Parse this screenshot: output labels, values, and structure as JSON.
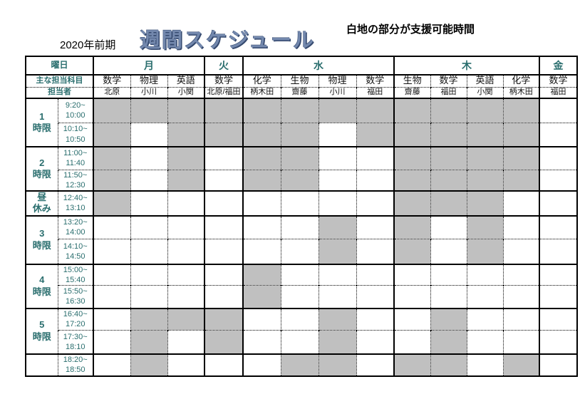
{
  "page": {
    "semester": "2020年前期",
    "title": "週間スケジュール",
    "note": "白地の部分が支援可能時間"
  },
  "table": {
    "corner_label": "曜日",
    "subject_row_label": "主な担当科目",
    "staff_row_label": "担当者",
    "day_groups": [
      {
        "day": "月",
        "subjects": [
          "数学",
          "物理",
          "英語"
        ],
        "staff": [
          "北原",
          "小川",
          "小関"
        ]
      },
      {
        "day": "火",
        "subjects": [
          "数学"
        ],
        "staff": [
          "北原/福田"
        ]
      },
      {
        "day": "水",
        "subjects": [
          "化学",
          "生物",
          "物理",
          "数学"
        ],
        "staff": [
          "柄木田",
          "齋藤",
          "小川",
          "福田"
        ]
      },
      {
        "day": "木",
        "subjects": [
          "生物",
          "数学",
          "英語",
          "化学"
        ],
        "staff": [
          "齋藤",
          "福田",
          "小関",
          "柄木田"
        ]
      },
      {
        "day": "金",
        "subjects": [
          "数学"
        ],
        "staff": [
          "福田"
        ]
      }
    ],
    "periods": [
      {
        "label_lines": [
          "1",
          "時限"
        ],
        "row_indices": [
          0,
          1
        ]
      },
      {
        "label_lines": [
          "2",
          "時限"
        ],
        "row_indices": [
          2,
          3
        ]
      },
      {
        "label_lines": [
          "昼",
          "休み"
        ],
        "row_indices": [
          4
        ]
      },
      {
        "label_lines": [
          "3",
          "時限"
        ],
        "row_indices": [
          5,
          6
        ]
      },
      {
        "label_lines": [
          "4",
          "時限"
        ],
        "row_indices": [
          7,
          8
        ]
      },
      {
        "label_lines": [
          "5",
          "時限"
        ],
        "row_indices": [
          9,
          10
        ]
      },
      {
        "label_lines": [
          ""
        ],
        "row_indices": [
          11
        ]
      }
    ],
    "rows": [
      {
        "time_lines": [
          "9:20~",
          "10:00"
        ],
        "cells": [
          1,
          1,
          1,
          1,
          1,
          1,
          1,
          1,
          1,
          1,
          1,
          1,
          0
        ]
      },
      {
        "time_lines": [
          "10:10~",
          "10:50"
        ],
        "cells": [
          1,
          0,
          1,
          1,
          1,
          1,
          0,
          1,
          1,
          1,
          1,
          1,
          0
        ]
      },
      {
        "time_lines": [
          "11:00~",
          "11:40"
        ],
        "cells": [
          1,
          0,
          1,
          0,
          1,
          1,
          0,
          0,
          1,
          1,
          1,
          1,
          0
        ]
      },
      {
        "time_lines": [
          "11:50~",
          "12:30"
        ],
        "cells": [
          1,
          0,
          1,
          0,
          1,
          1,
          0,
          0,
          1,
          1,
          1,
          1,
          0
        ]
      },
      {
        "time_lines": [
          "12:40~",
          "13:10"
        ],
        "cells": [
          1,
          0,
          0,
          0,
          0,
          0,
          0,
          0,
          1,
          1,
          1,
          0,
          0
        ]
      },
      {
        "time_lines": [
          "13:20~",
          "14:00"
        ],
        "cells": [
          0,
          0,
          0,
          0,
          0,
          0,
          1,
          0,
          1,
          0,
          1,
          0,
          0
        ]
      },
      {
        "time_lines": [
          "14:10~",
          "14:50"
        ],
        "cells": [
          0,
          0,
          0,
          0,
          0,
          0,
          1,
          0,
          1,
          0,
          1,
          0,
          0
        ]
      },
      {
        "time_lines": [
          "15:00~",
          "15:40"
        ],
        "cells": [
          0,
          0,
          0,
          0,
          1,
          0,
          0,
          0,
          0,
          0,
          0,
          0,
          0
        ]
      },
      {
        "time_lines": [
          "15:50~",
          "16:30"
        ],
        "cells": [
          0,
          0,
          0,
          0,
          1,
          0,
          0,
          0,
          0,
          0,
          0,
          0,
          0
        ]
      },
      {
        "time_lines": [
          "16:40~",
          "17:20"
        ],
        "cells": [
          0,
          1,
          1,
          1,
          0,
          0,
          1,
          0,
          0,
          1,
          0,
          0,
          0
        ]
      },
      {
        "time_lines": [
          "17:30~",
          "18:10"
        ],
        "cells": [
          0,
          1,
          0,
          1,
          0,
          0,
          1,
          0,
          0,
          1,
          0,
          0,
          0
        ]
      },
      {
        "time_lines": [
          "18:20~",
          "18:50"
        ],
        "cells": [
          0,
          1,
          0,
          0,
          0,
          1,
          1,
          0,
          1,
          1,
          0,
          1,
          0
        ]
      }
    ],
    "cell_legend": {
      "1": "busy-gray",
      "0": "support-available-white"
    },
    "colors": {
      "busy_cell": "#c0c0c0",
      "heading_text": "#2a6e6e",
      "title_text": "#7388ad",
      "title_shadow": "#35496e"
    }
  }
}
